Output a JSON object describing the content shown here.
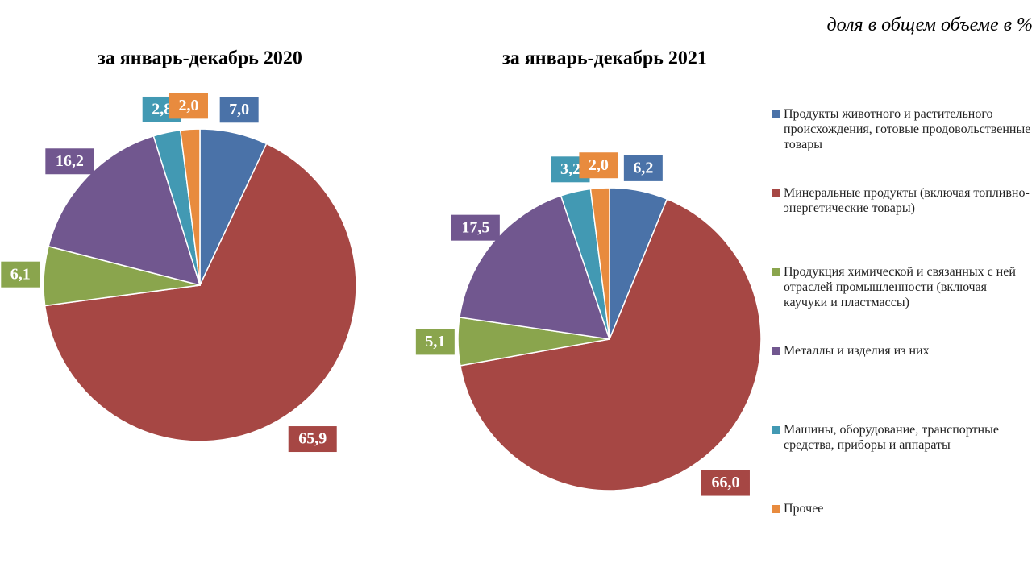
{
  "subtitle": "доля в общем объеме в %",
  "categories": [
    "Продукты животного и растительного происхождения, готовые продовольственные товары",
    "Минеральные продукты (включая топливно-энергетические товары)",
    "Продукция химической и связанных с ней отраслей промышленности (включая каучуки и пластмассы)",
    "Металлы и изделия из них",
    "Машины, оборудование, транспортные средства, приборы и аппараты",
    "Прочее"
  ],
  "colors": [
    "#4a72a8",
    "#a64744",
    "#8aa54d",
    "#71578f",
    "#4299b3",
    "#e88b3e"
  ],
  "chart_data": [
    {
      "type": "pie",
      "title": "за январь-декабрь 2020",
      "values": [
        7.0,
        65.9,
        6.1,
        16.2,
        2.8,
        2.0
      ],
      "value_labels": [
        "7,0",
        "65,9",
        "6,1",
        "16,2",
        "2,8",
        "2,0"
      ]
    },
    {
      "type": "pie",
      "title": "за январь-декабрь 2021",
      "values": [
        6.2,
        66.0,
        5.1,
        17.5,
        3.2,
        2.0
      ],
      "value_labels": [
        "6,2",
        "66,0",
        "5,1",
        "17,5",
        "3,2",
        "2,0"
      ]
    }
  ]
}
